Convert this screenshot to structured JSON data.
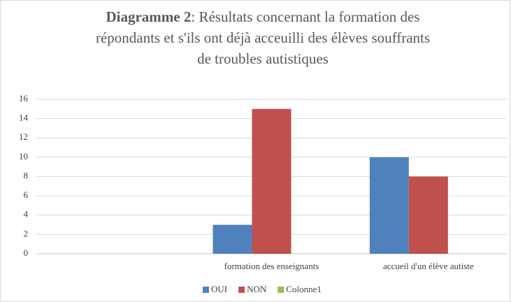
{
  "chart_data": {
    "type": "bar",
    "title": {
      "bold": "Diagramme 2",
      "lines": [
        ":  Résultats concernant la formation des",
        "répondants et s'ils ont déjà acceuilli des élèves souffrants",
        "de troubles autistiques"
      ]
    },
    "categories": [
      null,
      "formation des enseignants",
      "accueil d'un élève autiste"
    ],
    "series": [
      {
        "name": "OUI",
        "color": "#4f81bd",
        "values": [
          null,
          3,
          10
        ]
      },
      {
        "name": "NON",
        "color": "#c0504d",
        "values": [
          null,
          15,
          8
        ]
      },
      {
        "name": "Colonne1",
        "color": "#9bbb59",
        "values": [
          null,
          null,
          null
        ]
      }
    ],
    "ylim": [
      0,
      16
    ],
    "yticks": [
      0,
      2,
      4,
      6,
      8,
      10,
      12,
      14,
      16
    ],
    "grid": true,
    "legend": "bottom"
  }
}
